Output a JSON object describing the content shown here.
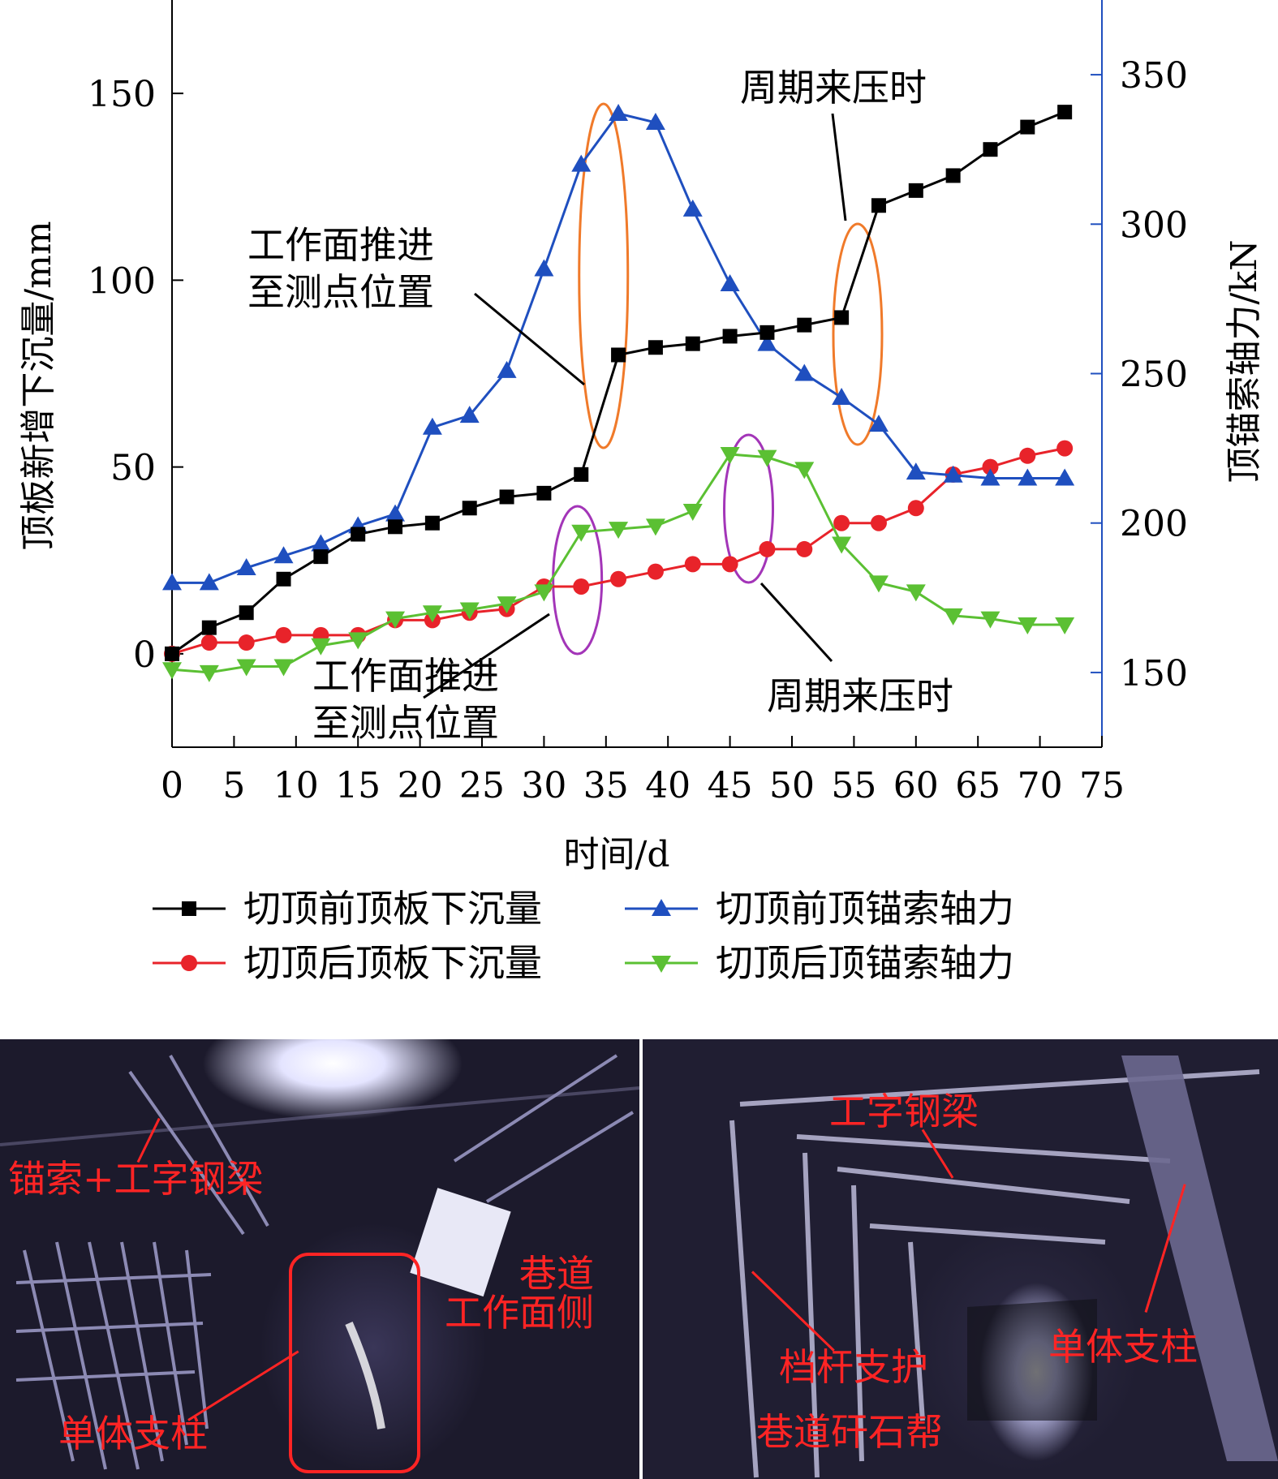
{
  "chart_data": {
    "type": "line",
    "x": [
      0,
      3,
      6,
      9,
      12,
      15,
      18,
      21,
      24,
      27,
      30,
      33,
      36,
      39,
      42,
      45,
      48,
      51,
      54,
      57,
      60,
      63,
      66,
      69,
      72
    ],
    "xlabel": "时间/d",
    "ylabel_left": "顶板新增下沉量/mm",
    "ylabel_right": "顶锚索轴力/kN",
    "xlim": [
      0,
      75
    ],
    "ylim_left": [
      -25,
      175
    ],
    "ylim_right": [
      125,
      375
    ],
    "x_ticks": [
      "0",
      "5",
      "10",
      "15",
      "20",
      "25",
      "30",
      "35",
      "40",
      "45",
      "50",
      "55",
      "60",
      "65",
      "70",
      "75"
    ],
    "y_ticks_left": [
      "0",
      "50",
      "100",
      "150"
    ],
    "y_ticks_right": [
      "150",
      "200",
      "250",
      "300",
      "350"
    ],
    "series": [
      {
        "name": "切顶前顶板下沉量",
        "axis": "left",
        "color": "#000000",
        "marker": "square",
        "values": [
          0,
          7,
          11,
          20,
          26,
          32,
          34,
          35,
          39,
          42,
          43,
          48,
          80,
          82,
          83,
          85,
          86,
          88,
          90,
          120,
          124,
          128,
          135,
          141,
          145
        ]
      },
      {
        "name": "切顶前顶锚索轴力",
        "axis": "right",
        "color": "#1f4fbf",
        "marker": "triangle-up",
        "values": [
          180,
          180,
          185,
          189,
          193,
          199,
          203,
          232,
          236,
          251,
          285,
          320,
          337,
          334,
          305,
          280,
          260,
          250,
          242,
          233,
          217,
          216,
          215,
          215,
          215
        ]
      },
      {
        "name": "切顶后顶板下沉量",
        "axis": "left",
        "color": "#e8232a",
        "marker": "circle",
        "values": [
          0,
          3,
          3,
          5,
          5,
          5,
          9,
          9,
          11,
          12,
          18,
          18,
          20,
          22,
          24,
          24,
          28,
          28,
          35,
          35,
          39,
          48,
          50,
          53,
          55
        ]
      },
      {
        "name": "切顶后顶锚索轴力",
        "axis": "right",
        "color": "#5bc033",
        "marker": "triangle-down",
        "values": [
          151,
          150,
          152,
          152,
          159,
          161,
          168,
          170,
          171,
          173,
          177,
          197,
          198,
          199,
          204,
          223,
          222,
          218,
          193,
          180,
          177,
          169,
          168,
          166,
          166
        ]
      }
    ],
    "annotations": [
      {
        "text": "工作面推进\n至测点位置",
        "color": "#000000"
      },
      {
        "text": "周期来压时",
        "color": "#000000"
      },
      {
        "text": "工作面推进\n至测点位置",
        "color": "#000000"
      },
      {
        "text": "周期来压时",
        "color": "#000000"
      }
    ],
    "highlight_colors": {
      "orange": "#f07a2a",
      "purple": "#a335b8"
    },
    "legend": {
      "placement": "bottom",
      "columns": 2
    }
  },
  "photos": {
    "left": {
      "labels": [
        "锚索+工字钢梁",
        "巷道\n工作面侧",
        "单体支柱"
      ]
    },
    "right": {
      "labels": [
        "工字钢梁",
        "单体支柱",
        "档杆支护",
        "巷道矸石帮"
      ]
    }
  }
}
